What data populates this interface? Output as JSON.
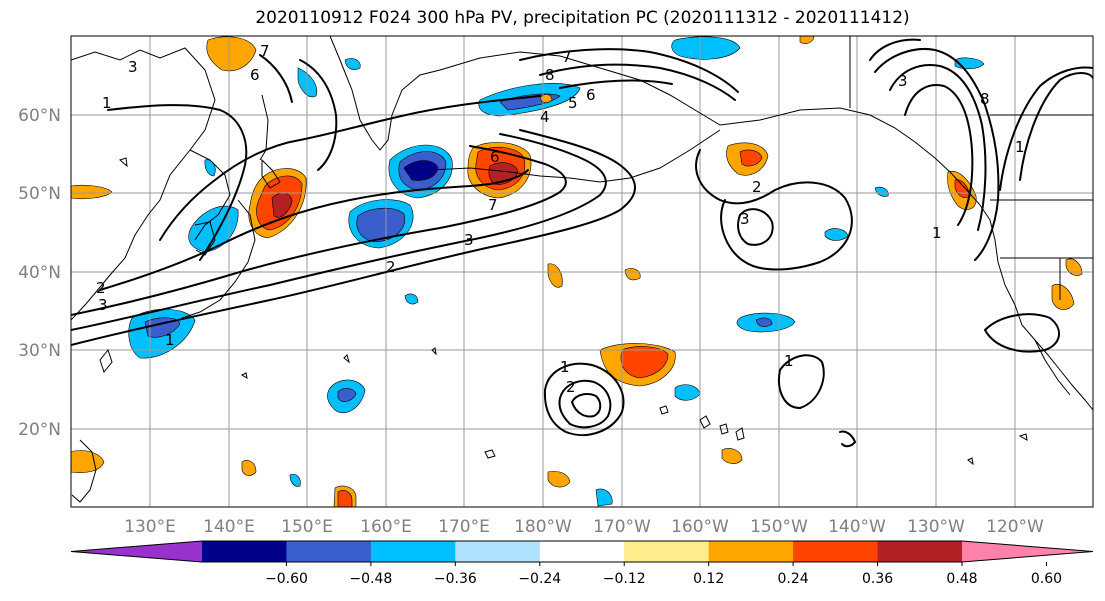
{
  "title": "2020110912 F024 300 hPa PV, precipitation PC (2020111312 - 2020111412)",
  "lat_labels": [
    "60°N",
    "50°N",
    "40°N",
    "30°N",
    "20°N"
  ],
  "lon_labels": [
    "130°E",
    "140°E",
    "150°E",
    "160°E",
    "170°E",
    "180°W",
    "170°W",
    "160°W",
    "150°W",
    "140°W",
    "130°W",
    "120°W"
  ],
  "colorbar": {
    "colors": [
      "#9932cc",
      "#00008b",
      "#3a5fcd",
      "#00bfff",
      "#b0e2ff",
      "#ffffff",
      "#ffec8b",
      "#ffa500",
      "#ff4500",
      "#b22222",
      "#ff82ab"
    ],
    "ticks": [
      "−0.60",
      "−0.48",
      "−0.36",
      "−0.24",
      "−0.12",
      "0.12",
      "0.24",
      "0.36",
      "0.48",
      "0.60"
    ]
  },
  "contour_labels": [
    "1",
    "2",
    "3",
    "4",
    "5",
    "6",
    "7",
    "8"
  ]
}
